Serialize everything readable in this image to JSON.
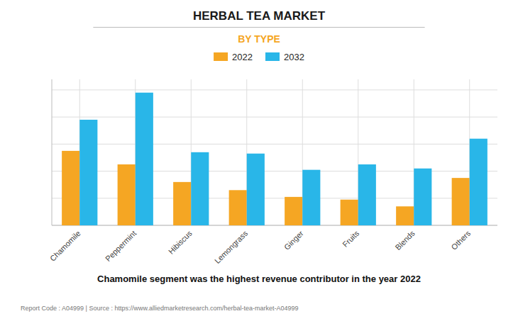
{
  "chart_data": {
    "type": "bar",
    "title": "HERBAL TEA MARKET",
    "subtitle": "BY TYPE",
    "categories": [
      "Chamomile",
      "Peppermint",
      "Hibiscus",
      "Lemongrass",
      "Ginger",
      "Fruits",
      "Blends",
      "Others"
    ],
    "series": [
      {
        "name": "2022",
        "color": "#F5A623",
        "values": [
          5.5,
          4.5,
          3.2,
          2.6,
          2.1,
          1.9,
          1.4,
          3.5
        ]
      },
      {
        "name": "2032",
        "color": "#29B6E8",
        "values": [
          7.8,
          9.8,
          5.4,
          5.3,
          4.1,
          4.5,
          4.2,
          6.4
        ]
      }
    ],
    "ylim": [
      0,
      10.78
    ],
    "yticks": [
      0,
      2,
      4,
      6,
      8,
      10
    ],
    "grid": true,
    "tick_labels": "x",
    "legend": "top",
    "annotations": [
      "Chamomile segment was the highest revenue contributor in the year 2022",
      "Report Code : A04999  |  Source : https://www.alliedmarketresearch.com/herbal-tea-market-A04999"
    ]
  }
}
